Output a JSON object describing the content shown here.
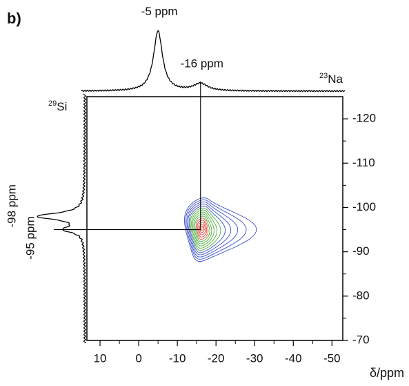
{
  "chart_data": {
    "type": "nmr-2d",
    "panel_label": "b)",
    "x_label": "δ/ppm",
    "xlim": [
      13.4,
      -52.8
    ],
    "xticks": [
      10,
      0,
      -10,
      -20,
      -30,
      -40,
      -50
    ],
    "ylim": [
      -70,
      -125
    ],
    "yticks": [
      -120,
      -110,
      -100,
      -90,
      -80,
      -70
    ],
    "peak": {
      "x": -16,
      "y": -95
    },
    "contour_colors": [
      "#3a4fc4",
      "#4caf3a",
      "#e5483c"
    ],
    "line_color": "#000000",
    "projections": [
      {
        "axis": "x",
        "mass": "23",
        "nucleus": "Na",
        "peaks": [
          {
            "position": -5,
            "label": "-5 ppm",
            "intensity": 1,
            "width": 1.4
          },
          {
            "position": -16,
            "label": "-16 ppm",
            "intensity": 0.12,
            "width": 2.2
          }
        ]
      },
      {
        "axis": "y",
        "mass": "29",
        "nucleus": "Si",
        "peaks": [
          {
            "position": -98,
            "label": "-98 ppm",
            "intensity": 1,
            "width": 0.9
          },
          {
            "position": -95,
            "label": "-95 ppm",
            "intensity": 0.4,
            "width": 0.8
          }
        ]
      }
    ]
  }
}
